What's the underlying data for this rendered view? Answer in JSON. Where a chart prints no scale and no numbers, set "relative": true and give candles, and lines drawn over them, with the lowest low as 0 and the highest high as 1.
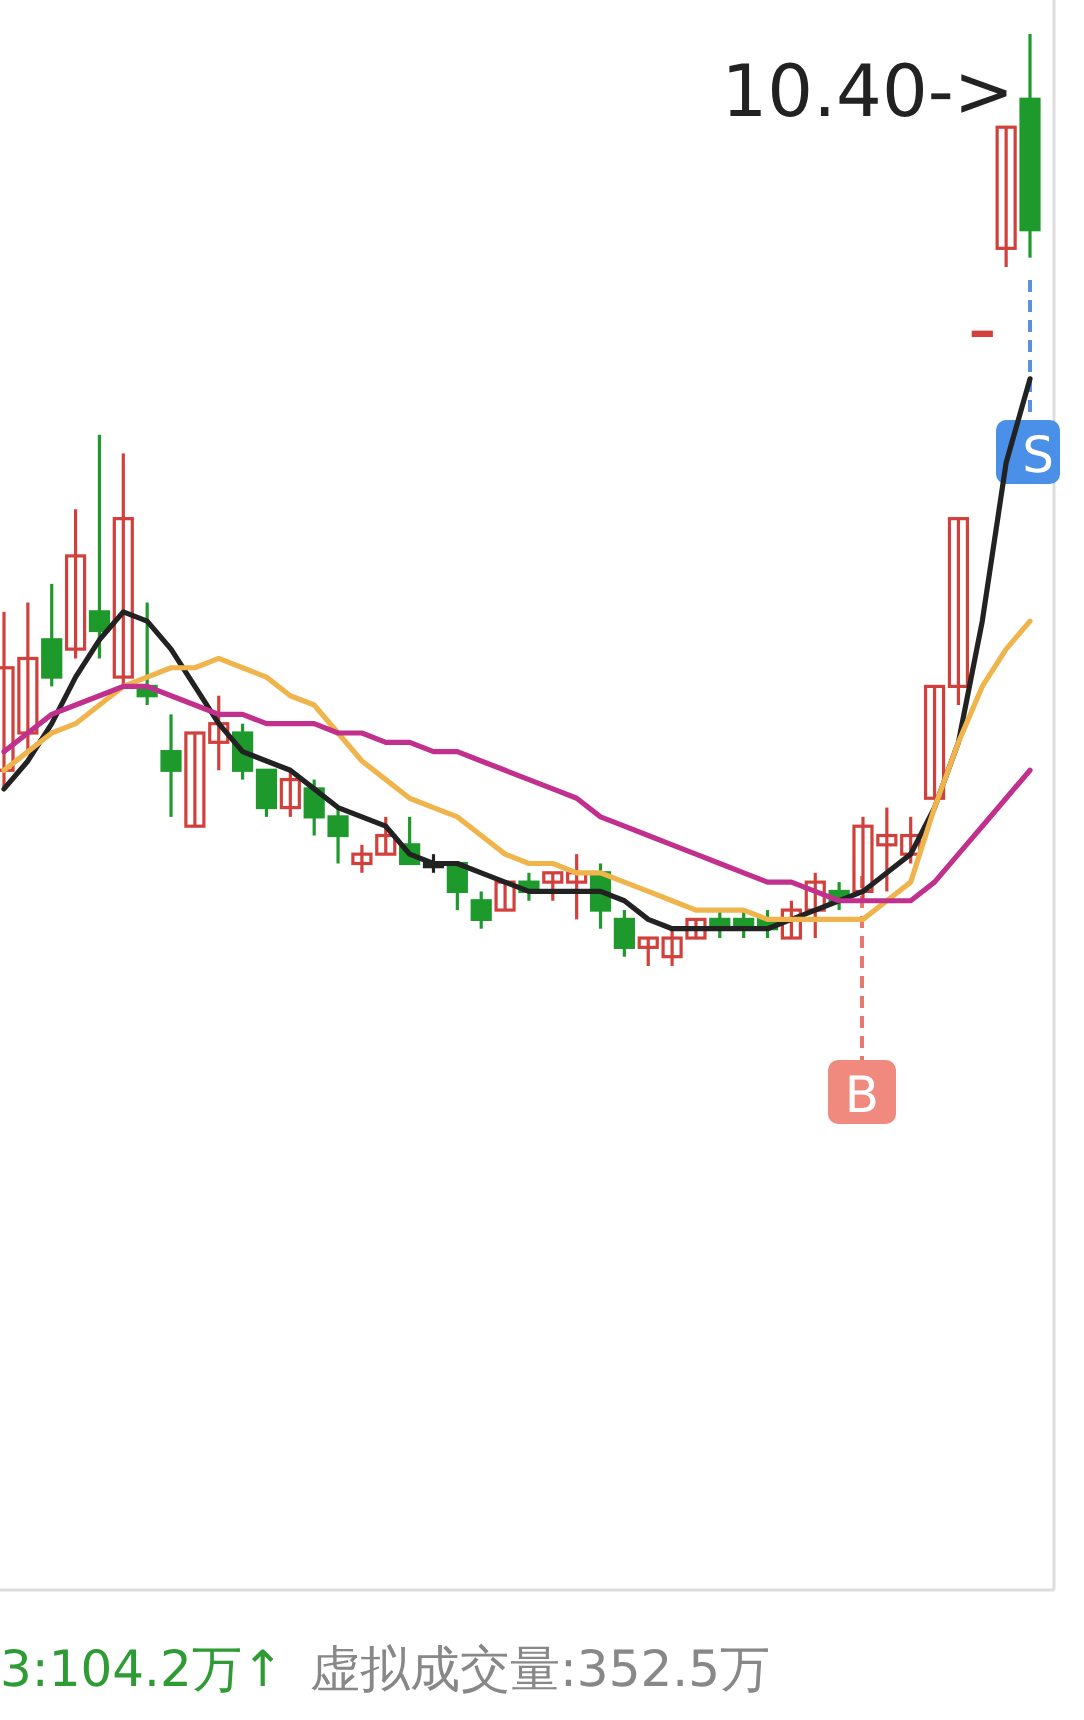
{
  "chart_data": {
    "type": "candlestick",
    "relative": true,
    "categories": [
      null,
      null,
      null,
      null,
      null,
      null,
      null,
      null,
      null,
      null,
      null,
      null,
      null,
      null,
      null,
      null,
      null,
      null,
      null,
      null,
      null,
      null,
      null,
      null,
      null,
      null,
      null,
      null,
      null,
      null,
      null,
      null,
      null,
      null,
      null,
      null,
      null,
      null,
      null,
      null,
      null,
      null,
      null,
      null
    ],
    "ohlc": [
      [
        0.21,
        0.38,
        0.19,
        0.32
      ],
      [
        0.25,
        0.39,
        0.23,
        0.33
      ],
      [
        0.35,
        0.41,
        0.3,
        0.31
      ],
      [
        0.34,
        0.49,
        0.33,
        0.44
      ],
      [
        0.38,
        0.57,
        0.33,
        0.36
      ],
      [
        0.31,
        0.55,
        0.3,
        0.48
      ],
      [
        0.3,
        0.39,
        0.28,
        0.29
      ],
      [
        0.23,
        0.27,
        0.16,
        0.21
      ],
      [
        0.15,
        0.25,
        0.15,
        0.25
      ],
      [
        0.24,
        0.29,
        0.21,
        0.26
      ],
      [
        0.25,
        0.26,
        0.2,
        0.21
      ],
      [
        0.21,
        0.21,
        0.16,
        0.17
      ],
      [
        0.17,
        0.21,
        0.16,
        0.2
      ],
      [
        0.19,
        0.2,
        0.14,
        0.16
      ],
      [
        0.16,
        0.17,
        0.11,
        0.14
      ],
      [
        0.11,
        0.13,
        0.1,
        0.12
      ],
      [
        0.12,
        0.16,
        0.12,
        0.14
      ],
      [
        0.13,
        0.16,
        0.11,
        0.11
      ],
      [
        0.11,
        0.12,
        0.1,
        0.11
      ],
      [
        0.11,
        0.11,
        0.06,
        0.08
      ],
      [
        0.07,
        0.08,
        0.04,
        0.05
      ],
      [
        0.06,
        0.09,
        0.06,
        0.09
      ],
      [
        0.09,
        0.1,
        0.07,
        0.08
      ],
      [
        0.09,
        0.1,
        0.07,
        0.1
      ],
      [
        0.09,
        0.12,
        0.05,
        0.1
      ],
      [
        0.1,
        0.11,
        0.04,
        0.06
      ],
      [
        0.05,
        0.06,
        0.01,
        0.02
      ],
      [
        0.02,
        0.03,
        0.0,
        0.03
      ],
      [
        0.01,
        0.04,
        0.0,
        0.03
      ],
      [
        0.03,
        0.05,
        0.03,
        0.05
      ],
      [
        0.05,
        0.06,
        0.03,
        0.04
      ],
      [
        0.05,
        0.06,
        0.03,
        0.04
      ],
      [
        0.05,
        0.06,
        0.03,
        0.04
      ],
      [
        0.03,
        0.07,
        0.03,
        0.06
      ],
      [
        0.06,
        0.1,
        0.03,
        0.09
      ],
      [
        0.08,
        0.09,
        0.06,
        0.07
      ],
      [
        0.08,
        0.16,
        0.07,
        0.15
      ],
      [
        0.13,
        0.17,
        0.08,
        0.14
      ],
      [
        0.12,
        0.16,
        0.11,
        0.14
      ],
      [
        0.18,
        0.3,
        0.18,
        0.3
      ],
      [
        0.3,
        0.48,
        0.28,
        0.48
      ],
      [
        0.68,
        0.68,
        0.68,
        0.68
      ],
      [
        0.77,
        0.9,
        0.75,
        0.9
      ],
      [
        0.93,
        1.0,
        0.76,
        0.79
      ]
    ],
    "series": [
      {
        "type": "line",
        "color": "#222222",
        "values": [
          0.19,
          0.22,
          0.26,
          0.31,
          0.35,
          0.38,
          0.37,
          0.34,
          0.3,
          0.26,
          0.23,
          0.22,
          0.21,
          0.19,
          0.17,
          0.16,
          0.15,
          0.12,
          0.11,
          0.11,
          0.1,
          0.09,
          0.08,
          0.08,
          0.08,
          0.08,
          0.07,
          0.05,
          0.04,
          0.04,
          0.04,
          0.04,
          0.04,
          0.05,
          0.06,
          0.07,
          0.08,
          0.1,
          0.12,
          0.17,
          0.24,
          0.37,
          0.54,
          0.63
        ]
      },
      {
        "type": "line",
        "color": "#f0b44c",
        "values": [
          0.21,
          0.23,
          0.25,
          0.26,
          0.28,
          0.3,
          0.31,
          0.32,
          0.32,
          0.33,
          0.32,
          0.31,
          0.29,
          0.28,
          0.25,
          0.22,
          0.2,
          0.18,
          0.17,
          0.16,
          0.14,
          0.12,
          0.11,
          0.11,
          0.1,
          0.1,
          0.09,
          0.08,
          0.07,
          0.06,
          0.06,
          0.06,
          0.05,
          0.05,
          0.05,
          0.05,
          0.05,
          0.07,
          0.09,
          0.17,
          0.24,
          0.3,
          0.34,
          0.37
        ]
      },
      {
        "type": "line",
        "color": "#c2308e",
        "values": [
          0.23,
          0.25,
          0.27,
          0.28,
          0.29,
          0.3,
          0.3,
          0.29,
          0.28,
          0.27,
          0.27,
          0.26,
          0.26,
          0.26,
          0.25,
          0.25,
          0.24,
          0.24,
          0.23,
          0.23,
          0.22,
          0.21,
          0.2,
          0.19,
          0.18,
          0.16,
          0.15,
          0.14,
          0.13,
          0.12,
          0.11,
          0.1,
          0.09,
          0.09,
          0.08,
          0.07,
          0.07,
          0.07,
          0.07,
          0.09,
          0.12,
          0.15,
          0.18,
          0.21
        ]
      }
    ],
    "annotations": [
      "10.40->",
      "B",
      "S",
      "3:104.2万↑",
      "虚拟成交量:352.5万"
    ]
  }
}
